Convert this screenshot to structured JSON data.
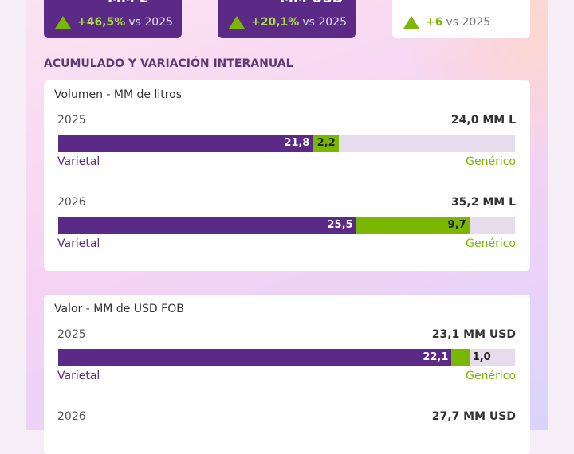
{
  "kpis": [
    {
      "unit": "MM L",
      "change": "+46,5%",
      "vs": "vs 2025"
    },
    {
      "unit": "MM USD",
      "change": "+20,1%",
      "vs": "vs 2025"
    },
    {
      "change": "+6",
      "vs": "vs 2025"
    }
  ],
  "section_title": "ACUMULADO Y VARIACIÓN INTERANUAL",
  "panels": [
    {
      "title": "Volumen - MM de litros",
      "rows": [
        {
          "year": "2025",
          "total": "24,0 MM L",
          "segments": [
            {
              "value": 21.8,
              "label": "21,8"
            },
            {
              "value": 2.2,
              "label": "2,2"
            }
          ],
          "left_label": "Varietal",
          "right_label": "Genérico"
        },
        {
          "year": "2026",
          "total": "35,2 MM L",
          "segments": [
            {
              "value": 25.5,
              "label": "25,5"
            },
            {
              "value": 9.7,
              "label": "9,7"
            }
          ],
          "left_label": "Varietal",
          "right_label": "Genérico"
        }
      ]
    },
    {
      "title": "Valor - MM de USD FOB",
      "rows": [
        {
          "year": "2025",
          "total": "23,1 MM USD",
          "segments": [
            {
              "value": 22.1,
              "label": "22,1"
            },
            {
              "value": 1.0,
              "label": "1,0"
            }
          ],
          "left_label": "Varietal",
          "right_label": "Genérico"
        },
        {
          "year": "2026",
          "total": "27,7 MM USD"
        }
      ]
    }
  ]
}
